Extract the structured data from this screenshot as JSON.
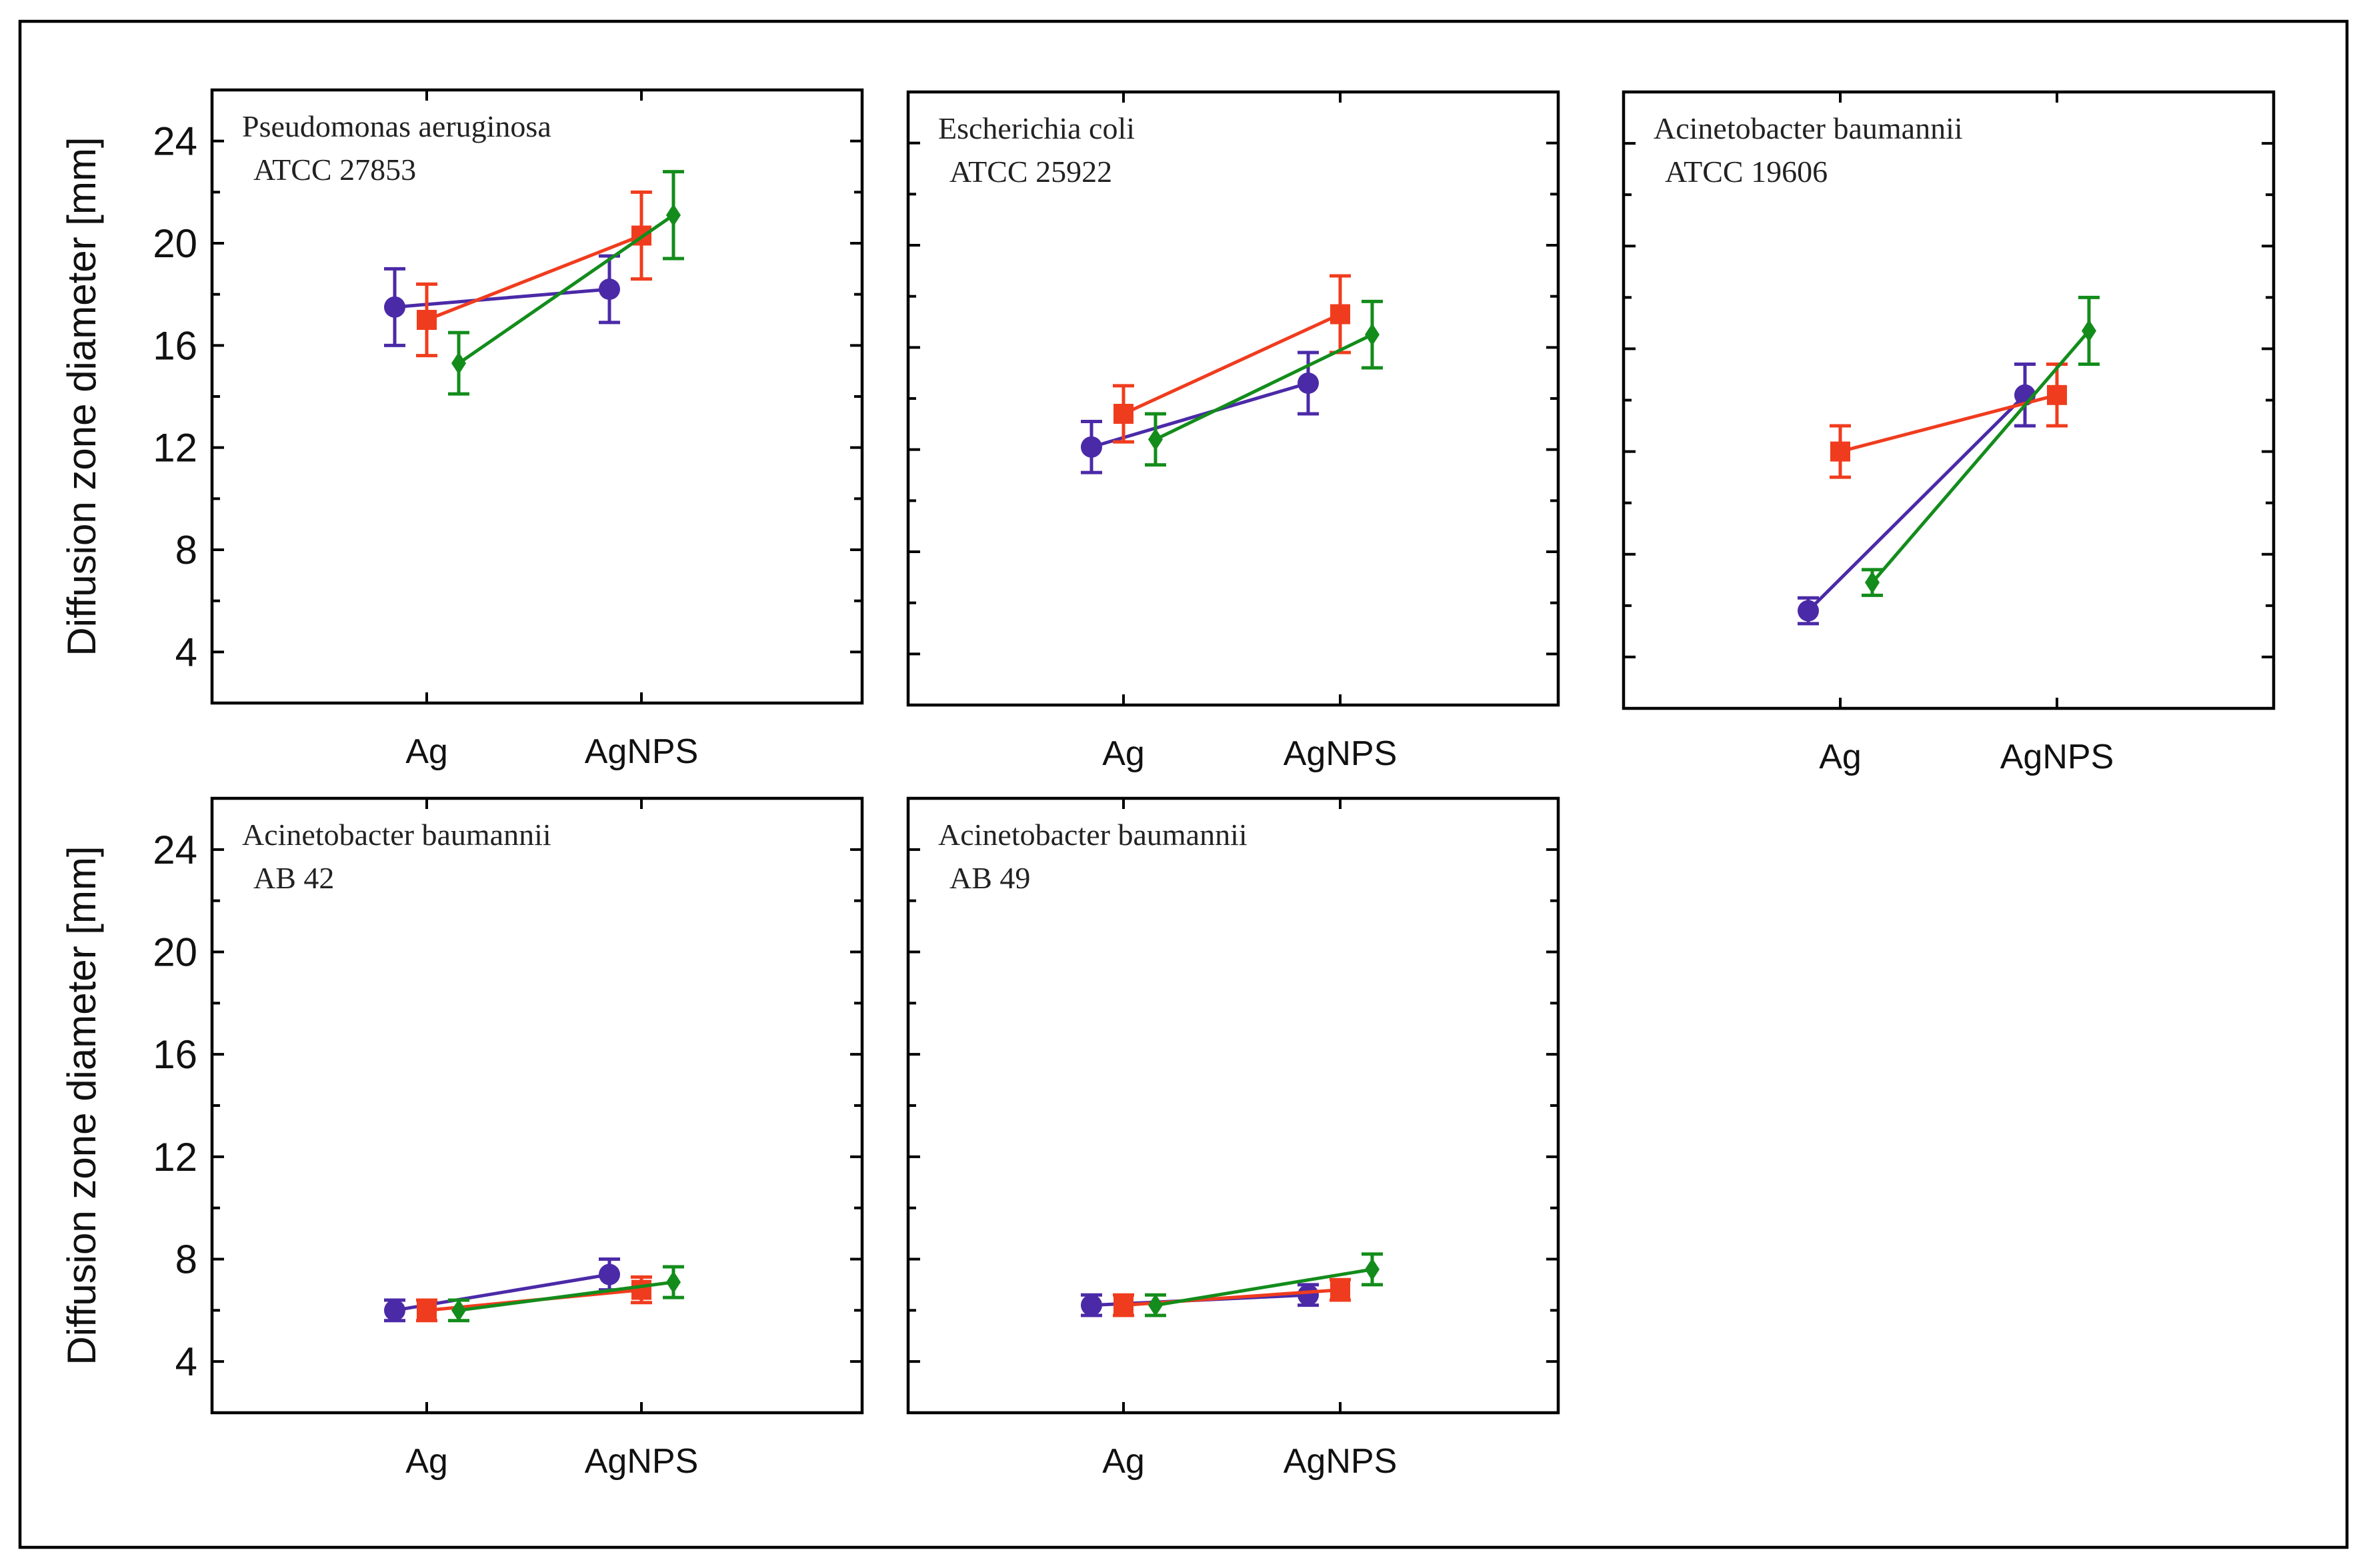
{
  "chart_data": [
    {
      "type": "line",
      "title": "Pseudomonas aeruginosa",
      "subtitle": "ATCC 27853",
      "categories": [
        "Ag",
        "AgNPS"
      ],
      "ylabel": "Diffusion zone diameter [mm]",
      "ylim": [
        2,
        26
      ],
      "yticks": [
        4,
        8,
        12,
        16,
        20,
        24
      ],
      "series": [
        {
          "name": "series-1",
          "color": "#4b2aa8",
          "marker": "circle",
          "values": [
            17.5,
            18.2
          ],
          "errors": [
            1.5,
            1.3
          ]
        },
        {
          "name": "series-2",
          "color": "#f03c1e",
          "marker": "square",
          "values": [
            17.0,
            20.3
          ],
          "errors": [
            1.4,
            1.7
          ]
        },
        {
          "name": "series-3",
          "color": "#138c1b",
          "marker": "diamond",
          "values": [
            15.3,
            21.1
          ],
          "errors": [
            1.2,
            1.7
          ]
        }
      ]
    },
    {
      "type": "line",
      "title": "Escherichia coli",
      "subtitle": "ATCC 25922",
      "categories": [
        "Ag",
        "AgNPS"
      ],
      "ylabel": "",
      "ylim": [
        2,
        26
      ],
      "yticks": [
        4,
        8,
        12,
        16,
        20,
        24
      ],
      "series": [
        {
          "name": "series-1",
          "color": "#4b2aa8",
          "marker": "circle",
          "values": [
            12.1,
            14.6
          ],
          "errors": [
            1.0,
            1.2
          ]
        },
        {
          "name": "series-2",
          "color": "#f03c1e",
          "marker": "square",
          "values": [
            13.4,
            17.3
          ],
          "errors": [
            1.1,
            1.5
          ]
        },
        {
          "name": "series-3",
          "color": "#138c1b",
          "marker": "diamond",
          "values": [
            12.4,
            16.5
          ],
          "errors": [
            1.0,
            1.3
          ]
        }
      ]
    },
    {
      "type": "line",
      "title": "Acinetobacter baumannii",
      "subtitle": "ATCC 19606",
      "categories": [
        "Ag",
        "AgNPS"
      ],
      "ylabel": "",
      "ylim": [
        2,
        26
      ],
      "yticks": [
        4,
        8,
        12,
        16,
        20,
        24
      ],
      "series": [
        {
          "name": "series-1",
          "color": "#4b2aa8",
          "marker": "circle",
          "values": [
            5.8,
            14.2
          ],
          "errors": [
            0.5,
            1.2
          ]
        },
        {
          "name": "series-2",
          "color": "#f03c1e",
          "marker": "square",
          "values": [
            12.0,
            14.2
          ],
          "errors": [
            1.0,
            1.2
          ]
        },
        {
          "name": "series-3",
          "color": "#138c1b",
          "marker": "diamond",
          "values": [
            6.9,
            16.7
          ],
          "errors": [
            0.5,
            1.3
          ]
        }
      ]
    },
    {
      "type": "line",
      "title": "Acinetobacter baumannii",
      "subtitle": "AB 42",
      "categories": [
        "Ag",
        "AgNPS"
      ],
      "ylabel": "Diffusion zone diameter [mm]",
      "ylim": [
        2,
        26
      ],
      "yticks": [
        4,
        8,
        12,
        16,
        20,
        24
      ],
      "series": [
        {
          "name": "series-1",
          "color": "#4b2aa8",
          "marker": "circle",
          "values": [
            6.0,
            7.4
          ],
          "errors": [
            0.4,
            0.6
          ]
        },
        {
          "name": "series-2",
          "color": "#f03c1e",
          "marker": "square",
          "values": [
            6.0,
            6.8
          ],
          "errors": [
            0.4,
            0.5
          ]
        },
        {
          "name": "series-3",
          "color": "#138c1b",
          "marker": "diamond",
          "values": [
            6.0,
            7.1
          ],
          "errors": [
            0.4,
            0.6
          ]
        }
      ]
    },
    {
      "type": "line",
      "title": "Acinetobacter baumannii",
      "subtitle": "AB 49",
      "categories": [
        "Ag",
        "AgNPS"
      ],
      "ylabel": "",
      "ylim": [
        2,
        26
      ],
      "yticks": [
        4,
        8,
        12,
        16,
        20,
        24
      ],
      "series": [
        {
          "name": "series-1",
          "color": "#4b2aa8",
          "marker": "circle",
          "values": [
            6.2,
            6.6
          ],
          "errors": [
            0.4,
            0.4
          ]
        },
        {
          "name": "series-2",
          "color": "#f03c1e",
          "marker": "square",
          "values": [
            6.2,
            6.8
          ],
          "errors": [
            0.4,
            0.4
          ]
        },
        {
          "name": "series-3",
          "color": "#138c1b",
          "marker": "diamond",
          "values": [
            6.2,
            7.6
          ],
          "errors": [
            0.4,
            0.6
          ]
        }
      ]
    }
  ]
}
